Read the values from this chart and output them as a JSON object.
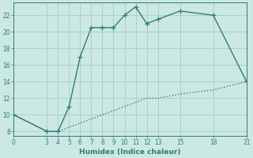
{
  "line1_x": [
    0,
    3,
    4,
    5,
    6,
    7,
    8,
    9,
    10,
    11,
    12,
    13,
    15,
    18,
    21
  ],
  "line1_y": [
    10,
    8,
    8,
    11,
    17,
    20.5,
    20.5,
    20.5,
    22,
    23,
    21,
    21.5,
    22.5,
    22,
    14
  ],
  "line2_x": [
    0,
    3,
    4,
    5,
    6,
    7,
    8,
    9,
    10,
    11,
    12,
    13,
    15,
    18,
    21
  ],
  "line2_y": [
    10,
    8,
    8,
    8.5,
    9,
    9.5,
    10,
    10.5,
    11,
    11.5,
    12,
    12,
    12.5,
    13,
    14
  ],
  "line_color": "#2e7d72",
  "bg_color": "#cce8e4",
  "grid_color": "#aad0cb",
  "xlabel": "Humidex (Indice chaleur)",
  "xlim": [
    0,
    21
  ],
  "ylim": [
    7.5,
    23.5
  ],
  "xticks": [
    0,
    3,
    4,
    5,
    6,
    7,
    8,
    9,
    10,
    11,
    12,
    13,
    15,
    18,
    21
  ],
  "yticks": [
    8,
    10,
    12,
    14,
    16,
    18,
    20,
    22
  ],
  "marker_size": 4,
  "line_width": 1.0
}
